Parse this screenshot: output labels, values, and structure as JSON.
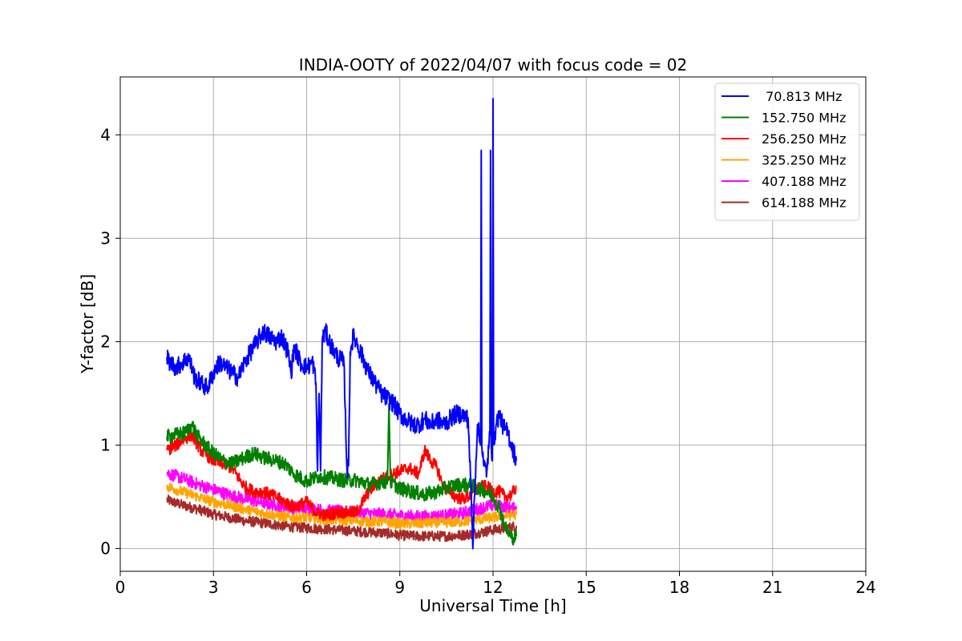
{
  "chart_data": {
    "type": "line",
    "title": "INDIA-OOTY of 2022/04/07 with focus code = 02",
    "xlabel": "Universal Time [h]",
    "ylabel": "Y-factor [dB]",
    "xlim": [
      0,
      24
    ],
    "ylim": [
      -0.22,
      4.56
    ],
    "xticks": [
      0,
      3,
      6,
      9,
      12,
      15,
      18,
      21,
      24
    ],
    "yticks": [
      0,
      1,
      2,
      3,
      4
    ],
    "grid": true,
    "legend_position": "top-right",
    "series": [
      {
        "name": "70.813 MHz",
        "legend_label": " 70.813 MHz",
        "color": "#0000ff",
        "noise": 0.09,
        "x": [
          1.5,
          1.6,
          1.8,
          2.0,
          2.2,
          2.4,
          2.6,
          2.8,
          3.0,
          3.2,
          3.4,
          3.6,
          3.8,
          4.0,
          4.2,
          4.4,
          4.6,
          4.8,
          5.0,
          5.2,
          5.4,
          5.5,
          5.6,
          5.8,
          6.0,
          6.2,
          6.3,
          6.35,
          6.4,
          6.45,
          6.5,
          6.6,
          6.8,
          7.0,
          7.2,
          7.3,
          7.35,
          7.4,
          7.5,
          7.6,
          7.8,
          8.0,
          8.2,
          8.4,
          8.6,
          8.8,
          9.0,
          9.2,
          9.4,
          9.6,
          9.8,
          10.0,
          10.2,
          10.4,
          10.6,
          10.8,
          11.0,
          11.2,
          11.3,
          11.35,
          11.4,
          11.5,
          11.6,
          11.62,
          11.64,
          11.7,
          11.8,
          11.9,
          11.92,
          11.94,
          11.98,
          12.0,
          12.02,
          12.1,
          12.2,
          12.3,
          12.4,
          12.5,
          12.6,
          12.75
        ],
        "y": [
          1.85,
          1.8,
          1.75,
          1.8,
          1.85,
          1.65,
          1.6,
          1.55,
          1.7,
          1.8,
          1.75,
          1.7,
          1.65,
          1.8,
          1.9,
          2.0,
          2.1,
          2.05,
          2.0,
          2.05,
          1.9,
          1.7,
          1.95,
          1.8,
          1.75,
          1.8,
          1.6,
          0.75,
          1.5,
          0.75,
          2.0,
          2.1,
          1.95,
          1.85,
          1.8,
          0.75,
          0.8,
          1.9,
          2.05,
          2.0,
          1.85,
          1.7,
          1.6,
          1.5,
          1.45,
          1.4,
          1.3,
          1.25,
          1.2,
          1.2,
          1.25,
          1.2,
          1.25,
          1.2,
          1.25,
          1.3,
          1.3,
          1.25,
          0.5,
          0.0,
          0.5,
          1.2,
          1.0,
          3.85,
          1.0,
          0.8,
          0.75,
          1.1,
          3.85,
          1.0,
          0.9,
          4.35,
          1.0,
          1.2,
          1.3,
          1.2,
          1.15,
          1.1,
          1.0,
          0.85
        ]
      },
      {
        "name": "152.750 MHz",
        "legend_label": "152.750 MHz",
        "color": "#008000",
        "noise": 0.07,
        "x": [
          1.5,
          1.8,
          2.1,
          2.3,
          2.5,
          2.8,
          3.0,
          3.3,
          3.6,
          4.0,
          4.3,
          4.6,
          5.0,
          5.3,
          5.6,
          6.0,
          6.4,
          6.8,
          7.2,
          7.6,
          8.0,
          8.4,
          8.6,
          8.65,
          8.7,
          9.0,
          9.4,
          9.8,
          10.2,
          10.6,
          11.0,
          11.4,
          11.8,
          12.0,
          12.2,
          12.4,
          12.6,
          12.75
        ],
        "y": [
          1.08,
          1.1,
          1.12,
          1.2,
          1.08,
          0.98,
          0.92,
          0.85,
          0.82,
          0.88,
          0.92,
          0.88,
          0.85,
          0.82,
          0.72,
          0.65,
          0.7,
          0.68,
          0.66,
          0.66,
          0.62,
          0.64,
          0.65,
          1.4,
          0.65,
          0.58,
          0.55,
          0.52,
          0.55,
          0.6,
          0.62,
          0.6,
          0.55,
          0.5,
          0.4,
          0.2,
          0.1,
          0.12
        ]
      },
      {
        "name": "256.250 MHz",
        "legend_label": "256.250 MHz",
        "color": "#ff0000",
        "noise": 0.06,
        "x": [
          1.5,
          1.8,
          2.0,
          2.3,
          2.6,
          3.0,
          3.3,
          3.6,
          4.0,
          4.3,
          4.6,
          5.0,
          5.3,
          5.6,
          6.0,
          6.3,
          6.6,
          7.0,
          7.3,
          7.6,
          8.0,
          8.3,
          8.6,
          9.0,
          9.3,
          9.6,
          9.8,
          10.0,
          10.2,
          10.4,
          10.6,
          10.8,
          11.0,
          11.2,
          11.4,
          11.6,
          11.8,
          12.0,
          12.2,
          12.4,
          12.6,
          12.75
        ],
        "y": [
          0.95,
          1.0,
          1.05,
          1.1,
          0.95,
          0.85,
          0.82,
          0.78,
          0.6,
          0.55,
          0.55,
          0.5,
          0.45,
          0.4,
          0.45,
          0.35,
          0.32,
          0.35,
          0.35,
          0.35,
          0.55,
          0.65,
          0.7,
          0.75,
          0.78,
          0.72,
          0.95,
          0.85,
          0.78,
          0.6,
          0.55,
          0.5,
          0.48,
          0.5,
          0.55,
          0.6,
          0.6,
          0.55,
          0.55,
          0.5,
          0.52,
          0.6
        ]
      },
      {
        "name": "325.250 MHz",
        "legend_label": "325.250 MHz",
        "color": "#ffa500",
        "noise": 0.05,
        "x": [
          1.5,
          2.0,
          2.5,
          3.0,
          3.5,
          4.0,
          4.5,
          5.0,
          5.5,
          6.0,
          6.5,
          7.0,
          7.5,
          8.0,
          8.5,
          9.0,
          9.5,
          10.0,
          10.5,
          11.0,
          11.5,
          12.0,
          12.5,
          12.75
        ],
        "y": [
          0.6,
          0.55,
          0.5,
          0.45,
          0.42,
          0.38,
          0.35,
          0.32,
          0.3,
          0.3,
          0.28,
          0.28,
          0.27,
          0.26,
          0.26,
          0.24,
          0.24,
          0.25,
          0.25,
          0.26,
          0.28,
          0.3,
          0.32,
          0.33
        ]
      },
      {
        "name": "407.188 MHz",
        "legend_label": "407.188 MHz",
        "color": "#ff00ff",
        "noise": 0.06,
        "x": [
          1.5,
          2.0,
          2.5,
          3.0,
          3.5,
          4.0,
          4.5,
          5.0,
          5.5,
          6.0,
          6.5,
          7.0,
          7.5,
          8.0,
          8.5,
          9.0,
          9.5,
          10.0,
          10.5,
          11.0,
          11.5,
          12.0,
          12.5,
          12.75
        ],
        "y": [
          0.73,
          0.68,
          0.62,
          0.57,
          0.52,
          0.48,
          0.45,
          0.42,
          0.4,
          0.38,
          0.37,
          0.36,
          0.35,
          0.34,
          0.33,
          0.32,
          0.31,
          0.31,
          0.32,
          0.34,
          0.38,
          0.42,
          0.4,
          0.38
        ]
      },
      {
        "name": "614.188 MHz",
        "legend_label": "614.188 MHz",
        "color": "#a52a2a",
        "noise": 0.05,
        "x": [
          1.5,
          2.0,
          2.5,
          3.0,
          3.5,
          4.0,
          4.5,
          5.0,
          5.5,
          6.0,
          6.5,
          7.0,
          7.5,
          8.0,
          8.5,
          9.0,
          9.5,
          10.0,
          10.5,
          11.0,
          11.5,
          12.0,
          12.5,
          12.75
        ],
        "y": [
          0.47,
          0.42,
          0.38,
          0.33,
          0.3,
          0.27,
          0.25,
          0.23,
          0.21,
          0.2,
          0.19,
          0.18,
          0.17,
          0.16,
          0.15,
          0.13,
          0.12,
          0.12,
          0.12,
          0.13,
          0.15,
          0.18,
          0.2,
          0.22
        ]
      }
    ]
  }
}
